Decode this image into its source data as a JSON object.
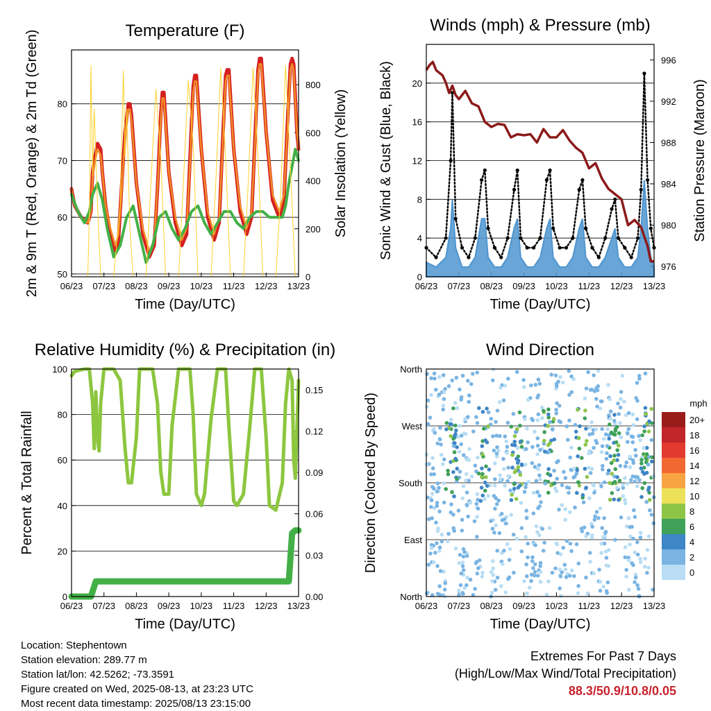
{
  "time_ticks": [
    "06/23",
    "07/23",
    "08/23",
    "09/23",
    "10/23",
    "11/23",
    "12/23",
    "13/23"
  ],
  "chart_data": [
    {
      "type": "line",
      "title": "Temperature (F)",
      "xlabel": "Time (Day/UTC)",
      "ylabel": "2m & 9m T (Red, Orange) & 2m Td (Green)",
      "ylabel_right": "Solar Insolation (Yellow)",
      "ylim": [
        49.5,
        89.5
      ],
      "yticks": [
        50,
        60,
        70,
        80
      ],
      "ylim_right": [
        0,
        945
      ],
      "yticks_right": [
        0,
        200,
        400,
        600,
        800
      ],
      "xlim_days": [
        0,
        7
      ],
      "grid": true,
      "series": [
        {
          "color": "#d42020",
          "x": [
            0,
            0.1,
            0.3,
            0.5,
            0.6,
            0.65,
            0.7,
            0.8,
            0.9,
            0.95,
            1.05,
            1.2,
            1.35,
            1.45,
            1.55,
            1.65,
            1.75,
            1.8,
            1.85,
            2.0,
            2.2,
            2.4,
            2.55,
            2.65,
            2.75,
            2.8,
            2.85,
            3.0,
            3.2,
            3.4,
            3.55,
            3.65,
            3.75,
            3.8,
            3.85,
            4.0,
            4.2,
            4.4,
            4.55,
            4.65,
            4.75,
            4.8,
            4.85,
            5.0,
            5.2,
            5.4,
            5.55,
            5.65,
            5.75,
            5.8,
            5.85,
            6.0,
            6.2,
            6.4,
            6.55,
            6.65,
            6.75,
            6.8,
            6.85,
            6.95,
            7.0
          ],
          "y": [
            65,
            62,
            60,
            59,
            61,
            68,
            70,
            73,
            72,
            68,
            62,
            57,
            54,
            56,
            66,
            75,
            80,
            80,
            78,
            66,
            57,
            53,
            55,
            65,
            78,
            82,
            82,
            68,
            59,
            55,
            57,
            70,
            83,
            85,
            85,
            72,
            60,
            56,
            59,
            72,
            85,
            86,
            86,
            72,
            61,
            57,
            60,
            73,
            86,
            88,
            88,
            75,
            63,
            60,
            63,
            76,
            87,
            88,
            87,
            75,
            72
          ]
        },
        {
          "color": "#f28c28",
          "x": [
            0,
            0.1,
            0.3,
            0.5,
            0.6,
            0.65,
            0.7,
            0.8,
            0.9,
            0.95,
            1.05,
            1.2,
            1.35,
            1.45,
            1.55,
            1.65,
            1.75,
            1.8,
            1.85,
            2.0,
            2.2,
            2.4,
            2.55,
            2.65,
            2.75,
            2.8,
            2.85,
            3.0,
            3.2,
            3.4,
            3.55,
            3.65,
            3.75,
            3.8,
            3.85,
            4.0,
            4.2,
            4.4,
            4.55,
            4.65,
            4.75,
            4.8,
            4.85,
            5.0,
            5.2,
            5.4,
            5.55,
            5.65,
            5.75,
            5.8,
            5.85,
            6.0,
            6.2,
            6.4,
            6.55,
            6.65,
            6.75,
            6.8,
            6.85,
            6.95,
            7.0
          ],
          "y": [
            65,
            62,
            60,
            59,
            61,
            67,
            69,
            72,
            71,
            68,
            62,
            58,
            55,
            57,
            65,
            74,
            79,
            79,
            77,
            66,
            58,
            54,
            56,
            65,
            77,
            81,
            81,
            68,
            60,
            56,
            58,
            69,
            82,
            84,
            84,
            72,
            61,
            57,
            60,
            71,
            84,
            85,
            85,
            72,
            62,
            58,
            61,
            72,
            85,
            87,
            87,
            75,
            64,
            61,
            64,
            75,
            86,
            87,
            86,
            75,
            72
          ]
        },
        {
          "color": "#43b047",
          "x": [
            0,
            0.2,
            0.4,
            0.55,
            0.65,
            0.8,
            0.95,
            1.1,
            1.3,
            1.5,
            1.7,
            1.9,
            2.1,
            2.3,
            2.5,
            2.7,
            2.9,
            3.1,
            3.3,
            3.5,
            3.7,
            3.9,
            4.1,
            4.3,
            4.5,
            4.7,
            4.9,
            5.1,
            5.3,
            5.5,
            5.7,
            5.9,
            6.1,
            6.3,
            6.5,
            6.6,
            6.7,
            6.8,
            6.9,
            7.0
          ],
          "y": [
            64,
            61,
            59,
            61,
            64,
            66,
            63,
            58,
            53,
            55,
            60,
            62,
            57,
            52,
            55,
            60,
            61,
            58,
            56,
            58,
            61,
            62,
            59,
            57,
            59,
            61,
            61,
            59,
            58,
            60,
            61,
            61,
            60,
            60,
            60,
            62,
            66,
            69,
            72,
            70
          ]
        },
        {
          "color": "#ffd12a",
          "axis": "right",
          "x": [
            0,
            0.5,
            0.55,
            0.6,
            0.65,
            0.7,
            0.8,
            0.85,
            0.9,
            1.3,
            1.5,
            1.6,
            1.65,
            1.7,
            1.8,
            1.9,
            2.3,
            2.45,
            2.6,
            2.75,
            2.9,
            3.3,
            3.45,
            3.6,
            3.75,
            3.9,
            4.3,
            4.45,
            4.6,
            4.75,
            4.9,
            5.3,
            5.45,
            5.6,
            5.75,
            5.9,
            6.3,
            6.45,
            6.6,
            6.75,
            6.9,
            7.0
          ],
          "y": [
            0,
            0,
            250,
            880,
            420,
            700,
            300,
            150,
            0,
            0,
            300,
            860,
            500,
            700,
            200,
            0,
            0,
            400,
            780,
            500,
            0,
            0,
            400,
            820,
            550,
            0,
            0,
            400,
            870,
            500,
            0,
            0,
            400,
            870,
            500,
            0,
            0,
            350,
            880,
            450,
            0,
            0
          ]
        }
      ]
    },
    {
      "type": "line",
      "title": "Winds (mph) & Pressure (mb)",
      "xlabel": "Time (Day/UTC)",
      "ylabel": "Sonic Wind & Gust (Blue, Black)",
      "ylabel_right": "Station Pressure (Maroon)",
      "ylim": [
        0,
        24
      ],
      "yticks": [
        0,
        4,
        8,
        12,
        16,
        20
      ],
      "ylim_right": [
        975,
        997.5
      ],
      "yticks_right": [
        976,
        980,
        984,
        988,
        992,
        996
      ],
      "xlim_days": [
        0,
        7
      ],
      "grid": true,
      "series": [
        {
          "color": "#8b1a1a",
          "axis": "right",
          "x": [
            0,
            0.1,
            0.2,
            0.3,
            0.5,
            0.6,
            0.7,
            0.8,
            0.9,
            1.0,
            1.2,
            1.4,
            1.6,
            1.8,
            2.0,
            2.2,
            2.4,
            2.6,
            2.8,
            3.0,
            3.2,
            3.4,
            3.6,
            3.8,
            4.0,
            4.2,
            4.4,
            4.6,
            4.8,
            5.0,
            5.2,
            5.4,
            5.6,
            5.8,
            6.0,
            6.2,
            6.4,
            6.6,
            6.8,
            6.9,
            7.0
          ],
          "y": [
            995,
            995.5,
            995.8,
            995,
            994.5,
            993.8,
            992.8,
            993.5,
            992.6,
            992.2,
            993,
            991.8,
            991.5,
            990,
            989.5,
            989.8,
            989.7,
            988.5,
            988.8,
            988.7,
            988.8,
            988,
            989.3,
            988.5,
            988.5,
            989.2,
            988.2,
            987.5,
            987,
            985.5,
            986,
            984.5,
            983.5,
            983,
            982.5,
            980,
            980.5,
            979.8,
            978,
            976.5,
            976.5
          ]
        },
        {
          "color": "#000000",
          "x": [
            0,
            0.3,
            0.6,
            0.75,
            0.8,
            0.9,
            1.1,
            1.3,
            1.5,
            1.7,
            1.8,
            1.9,
            2.1,
            2.3,
            2.5,
            2.7,
            2.8,
            2.9,
            3.1,
            3.3,
            3.5,
            3.7,
            3.8,
            3.9,
            4.1,
            4.3,
            4.5,
            4.7,
            4.8,
            4.9,
            5.1,
            5.3,
            5.5,
            5.7,
            5.8,
            5.9,
            6.1,
            6.3,
            6.5,
            6.6,
            6.7,
            6.8,
            6.9,
            7.0
          ],
          "y": [
            3,
            2,
            4,
            12,
            19,
            6,
            3,
            2,
            4,
            10,
            11,
            5,
            3,
            2,
            4,
            9,
            11,
            4,
            3,
            3,
            4,
            10,
            11,
            5,
            3,
            3,
            4,
            9,
            10,
            5,
            3,
            2,
            4,
            7,
            8,
            4,
            3,
            2,
            4,
            9,
            21,
            10,
            5,
            3
          ]
        },
        {
          "color": "#4f95cf",
          "x": [
            0,
            0.3,
            0.6,
            0.75,
            0.8,
            0.9,
            1.1,
            1.3,
            1.5,
            1.7,
            1.8,
            1.9,
            2.1,
            2.3,
            2.5,
            2.7,
            2.8,
            2.9,
            3.1,
            3.3,
            3.5,
            3.7,
            3.8,
            3.9,
            4.1,
            4.3,
            4.5,
            4.7,
            4.8,
            4.9,
            5.1,
            5.3,
            5.5,
            5.7,
            5.8,
            5.9,
            6.1,
            6.3,
            6.5,
            6.6,
            6.7,
            6.8,
            6.9,
            7.0
          ],
          "y": [
            1.5,
            1,
            2,
            5,
            8,
            3,
            1,
            1,
            2,
            6,
            6,
            2,
            1,
            1,
            2,
            5,
            6,
            2,
            1,
            1,
            2,
            5,
            6,
            2,
            1,
            1,
            2,
            5,
            6,
            2,
            1,
            1,
            2,
            4,
            5,
            2,
            1,
            1,
            2,
            5,
            10,
            5,
            2,
            1
          ]
        }
      ]
    },
    {
      "type": "line",
      "title": "Relative Humidity (%) & Precipitation (in)",
      "xlabel": "Time (Day/UTC)",
      "ylabel": "Percent & Total Rainfall",
      "ylim": [
        0,
        100
      ],
      "yticks": [
        0,
        20,
        40,
        60,
        80,
        100
      ],
      "ylim_right": [
        0,
        0.165
      ],
      "yticks_right": [
        "0.00",
        "0.03",
        "0.06",
        "0.09",
        "0.12",
        "0.15"
      ],
      "xlim_days": [
        0,
        7
      ],
      "grid": true,
      "series": [
        {
          "color": "#8dc63f",
          "x": [
            0,
            0.1,
            0.4,
            0.55,
            0.65,
            0.7,
            0.75,
            0.8,
            0.85,
            0.9,
            1.0,
            1.1,
            1.3,
            1.5,
            1.65,
            1.75,
            1.85,
            2.0,
            2.1,
            2.3,
            2.5,
            2.65,
            2.75,
            2.85,
            3.0,
            3.1,
            3.3,
            3.5,
            3.65,
            3.75,
            3.85,
            4.0,
            4.1,
            4.3,
            4.5,
            4.65,
            4.75,
            4.85,
            5.0,
            5.1,
            5.3,
            5.5,
            5.65,
            5.75,
            5.85,
            6.0,
            6.1,
            6.3,
            6.5,
            6.6,
            6.7,
            6.8,
            6.85,
            6.9,
            7.0
          ],
          "y": [
            97,
            99,
            100,
            100,
            85,
            65,
            90,
            70,
            64,
            85,
            100,
            100,
            100,
            95,
            65,
            50,
            50,
            70,
            100,
            100,
            100,
            85,
            55,
            45,
            45,
            75,
            100,
            100,
            100,
            80,
            45,
            40,
            45,
            78,
            100,
            100,
            100,
            75,
            42,
            40,
            45,
            75,
            100,
            100,
            100,
            70,
            40,
            38,
            50,
            85,
            100,
            95,
            60,
            52,
            95
          ]
        },
        {
          "color": "#43b047",
          "axis": "right",
          "x": [
            0,
            0.5,
            0.6,
            0.75,
            6.7,
            6.75,
            6.8,
            6.9,
            7.0
          ],
          "y": [
            0,
            0,
            0,
            0.011,
            0.011,
            0.028,
            0.046,
            0.048,
            0.048
          ]
        }
      ]
    },
    {
      "type": "scatter",
      "title": "Wind Direction",
      "xlabel": "Time (Day/UTC)",
      "ylabel": "Direction (Colored By Speed)",
      "yticks": [
        "North",
        "East",
        "South",
        "West",
        "North"
      ],
      "ylim": [
        0,
        360
      ],
      "xlim_days": [
        0,
        7
      ],
      "grid": true,
      "colorbar_title": "mph",
      "colorbar_labels": [
        "20+",
        "18",
        "16",
        "14",
        "12",
        "10",
        "8",
        "6",
        "4",
        "2",
        "0"
      ],
      "colorbar_colors": [
        "#9b1b1b",
        "#c2252a",
        "#e23a2f",
        "#f26832",
        "#f9a443",
        "#ede15a",
        "#8ec549",
        "#3fa05a",
        "#3f86c6",
        "#7ab4e2",
        "#b8ddf4"
      ]
    }
  ],
  "info": {
    "location": "Location: Stephentown",
    "elevation": "Station elevation: 289.77 m",
    "latlon": "Station lat/lon: 42.5262; -73.3591",
    "created": "Figure created on Wed, 2025-08-13, at 23:23 UTC",
    "recent": "Most recent data timestamp: 2025/08/13 23:15:00"
  },
  "extremes": {
    "title": "Extremes For Past 7 Days",
    "subtitle": "(High/Low/Max Wind/Total Precipitation)",
    "values": "88.3/50.9/10.8/0.05"
  }
}
